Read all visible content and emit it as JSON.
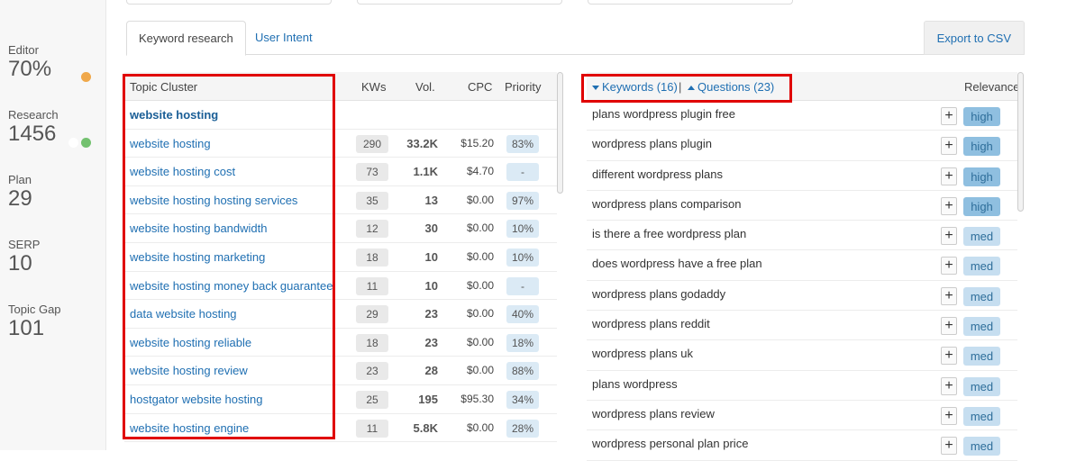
{
  "sidebar": {
    "metrics": [
      {
        "label": "Editor",
        "value": "70%",
        "dot": "#f0a84a"
      },
      {
        "label": "Research",
        "value": "1456",
        "dot": "#73c16f"
      },
      {
        "label": "Plan",
        "value": "29"
      },
      {
        "label": "SERP",
        "value": "10"
      },
      {
        "label": "Topic Gap",
        "value": "101"
      }
    ]
  },
  "tabs": {
    "keyword_research": "Keyword research",
    "user_intent": "User Intent",
    "export": "Export to CSV"
  },
  "left_table": {
    "headers": {
      "topic": "Topic Cluster",
      "kws": "KWs",
      "vol": "Vol.",
      "cpc": "CPC",
      "priority": "Priority"
    },
    "group_title": "website hosting",
    "rows": [
      {
        "kw": "website hosting",
        "kws": "290",
        "vol": "33.2K",
        "cpc": "$15.20",
        "priority": "83%"
      },
      {
        "kw": "website hosting cost",
        "kws": "73",
        "vol": "1.1K",
        "cpc": "$4.70",
        "priority": "-"
      },
      {
        "kw": "website hosting hosting services",
        "kws": "35",
        "vol": "13",
        "cpc": "$0.00",
        "priority": "97%"
      },
      {
        "kw": "website hosting bandwidth",
        "kws": "12",
        "vol": "30",
        "cpc": "$0.00",
        "priority": "10%"
      },
      {
        "kw": "website hosting marketing",
        "kws": "18",
        "vol": "10",
        "cpc": "$0.00",
        "priority": "10%"
      },
      {
        "kw": "website hosting money back guarantee",
        "kws": "11",
        "vol": "10",
        "cpc": "$0.00",
        "priority": "-"
      },
      {
        "kw": "data website hosting",
        "kws": "29",
        "vol": "23",
        "cpc": "$0.00",
        "priority": "40%"
      },
      {
        "kw": "website hosting reliable",
        "kws": "18",
        "vol": "23",
        "cpc": "$0.00",
        "priority": "18%"
      },
      {
        "kw": "website hosting review",
        "kws": "23",
        "vol": "28",
        "cpc": "$0.00",
        "priority": "88%"
      },
      {
        "kw": "hostgator website hosting",
        "kws": "25",
        "vol": "195",
        "cpc": "$95.30",
        "priority": "34%"
      },
      {
        "kw": "website hosting engine",
        "kws": "11",
        "vol": "5.8K",
        "cpc": "$0.00",
        "priority": "28%"
      }
    ]
  },
  "right_table": {
    "keywords_label": "Keywords (16)",
    "separator": "|",
    "questions_label": "Questions (23)",
    "relevance_header": "Relevance",
    "plus": "+",
    "rows": [
      {
        "kw": "plans wordpress plugin free",
        "rel": "high"
      },
      {
        "kw": "wordpress plans plugin",
        "rel": "high"
      },
      {
        "kw": "different wordpress plans",
        "rel": "high"
      },
      {
        "kw": "wordpress plans comparison",
        "rel": "high"
      },
      {
        "kw": "is there a free wordpress plan",
        "rel": "med"
      },
      {
        "kw": "does wordpress have a free plan",
        "rel": "med"
      },
      {
        "kw": "wordpress plans godaddy",
        "rel": "med"
      },
      {
        "kw": "wordpress plans reddit",
        "rel": "med"
      },
      {
        "kw": "wordpress plans uk",
        "rel": "med"
      },
      {
        "kw": "plans wordpress",
        "rel": "med"
      },
      {
        "kw": "wordpress plans review",
        "rel": "med"
      },
      {
        "kw": "wordpress personal plan price",
        "rel": "med"
      }
    ]
  },
  "colors": {
    "accent": "#1f6fb2",
    "highlight_box": "#e00000",
    "high": "#8fbfe0",
    "med": "#c6def0"
  }
}
